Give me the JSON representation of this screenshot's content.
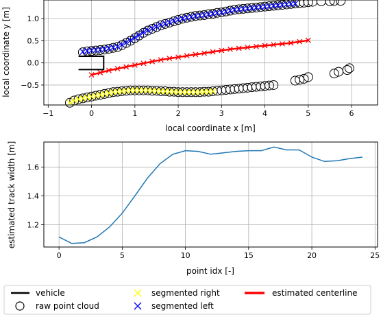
{
  "colors": {
    "raw": "#000000",
    "left": "#0000ff",
    "right": "#ffff00",
    "centerline": "#ff0000",
    "vehicle": "#000000",
    "width_line": "#1f77b4",
    "grid": "#b0b0b0"
  },
  "legend": {
    "placement": "bottom",
    "items": [
      {
        "label": "vehicle",
        "marker": "line-black"
      },
      {
        "label": "raw point cloud",
        "marker": "circle"
      },
      {
        "label": "segmented right",
        "marker": "x-yellow"
      },
      {
        "label": "segmented left",
        "marker": "x-blue"
      },
      {
        "label": "estimated centerline",
        "marker": "line-red"
      }
    ]
  },
  "chart_data": [
    {
      "type": "scatter",
      "xlabel": "local coordinate x [m]",
      "ylabel": "local coordinate y [m]",
      "xlim": [
        -1.1,
        6.6
      ],
      "ylim": [
        -0.95,
        1.42
      ],
      "xticks": [
        -1,
        0,
        1,
        2,
        3,
        4,
        5,
        6
      ],
      "xtick_labels": [
        "−1",
        "0",
        "1",
        "2",
        "3",
        "4",
        "5",
        "6"
      ],
      "yticks": [
        -0.5,
        0.0,
        0.5,
        1.0
      ],
      "ytick_labels": [
        "−0.5",
        "0.0",
        "0.5",
        "1.0"
      ],
      "grid": true,
      "vehicle": [
        [
          -0.3,
          -0.15
        ],
        [
          0.28,
          -0.15
        ],
        [
          0.28,
          0.15
        ],
        [
          -0.3,
          0.15
        ]
      ],
      "raw_point_cloud": [
        [
          -0.2,
          0.24
        ],
        [
          -0.1,
          0.26
        ],
        [
          0.0,
          0.27
        ],
        [
          0.1,
          0.28
        ],
        [
          0.2,
          0.29
        ],
        [
          0.3,
          0.3
        ],
        [
          0.4,
          0.32
        ],
        [
          0.5,
          0.34
        ],
        [
          0.6,
          0.36
        ],
        [
          0.7,
          0.4
        ],
        [
          0.8,
          0.45
        ],
        [
          0.9,
          0.5
        ],
        [
          1.0,
          0.56
        ],
        [
          1.1,
          0.62
        ],
        [
          1.2,
          0.68
        ],
        [
          1.3,
          0.73
        ],
        [
          1.4,
          0.77
        ],
        [
          1.5,
          0.81
        ],
        [
          1.6,
          0.85
        ],
        [
          1.7,
          0.88
        ],
        [
          1.8,
          0.91
        ],
        [
          1.9,
          0.94
        ],
        [
          2.0,
          0.97
        ],
        [
          2.1,
          1.0
        ],
        [
          2.2,
          1.02
        ],
        [
          2.3,
          1.04
        ],
        [
          2.4,
          1.06
        ],
        [
          2.5,
          1.07
        ],
        [
          2.6,
          1.08
        ],
        [
          2.7,
          1.1
        ],
        [
          2.8,
          1.11
        ],
        [
          2.9,
          1.13
        ],
        [
          3.0,
          1.14
        ],
        [
          3.1,
          1.16
        ],
        [
          3.2,
          1.18
        ],
        [
          3.3,
          1.2
        ],
        [
          3.4,
          1.21
        ],
        [
          3.5,
          1.22
        ],
        [
          3.6,
          1.23
        ],
        [
          3.7,
          1.24
        ],
        [
          3.8,
          1.25
        ],
        [
          3.9,
          1.26
        ],
        [
          4.0,
          1.27
        ],
        [
          4.1,
          1.28
        ],
        [
          4.2,
          1.29
        ],
        [
          4.3,
          1.3
        ],
        [
          4.4,
          1.31
        ],
        [
          4.5,
          1.32
        ],
        [
          4.6,
          1.33
        ],
        [
          4.7,
          1.34
        ],
        [
          4.8,
          1.35
        ],
        [
          4.9,
          1.36
        ],
        [
          5.0,
          1.37
        ],
        [
          5.1,
          1.38
        ],
        [
          5.3,
          1.39
        ],
        [
          5.5,
          1.39
        ],
        [
          5.6,
          1.4
        ],
        [
          5.75,
          1.4
        ],
        [
          -0.5,
          -0.9
        ],
        [
          -0.4,
          -0.85
        ],
        [
          -0.3,
          -0.82
        ],
        [
          -0.2,
          -0.8
        ],
        [
          -0.1,
          -0.78
        ],
        [
          0.0,
          -0.76
        ],
        [
          0.1,
          -0.74
        ],
        [
          0.2,
          -0.72
        ],
        [
          0.3,
          -0.7
        ],
        [
          0.4,
          -0.68
        ],
        [
          0.5,
          -0.66
        ],
        [
          0.6,
          -0.65
        ],
        [
          0.7,
          -0.64
        ],
        [
          0.8,
          -0.63
        ],
        [
          0.9,
          -0.62
        ],
        [
          1.0,
          -0.62
        ],
        [
          1.1,
          -0.62
        ],
        [
          1.2,
          -0.62
        ],
        [
          1.3,
          -0.62
        ],
        [
          1.4,
          -0.63
        ],
        [
          1.5,
          -0.63
        ],
        [
          1.6,
          -0.64
        ],
        [
          1.7,
          -0.64
        ],
        [
          1.8,
          -0.65
        ],
        [
          1.9,
          -0.65
        ],
        [
          2.0,
          -0.66
        ],
        [
          2.1,
          -0.66
        ],
        [
          2.2,
          -0.66
        ],
        [
          2.3,
          -0.66
        ],
        [
          2.4,
          -0.66
        ],
        [
          2.5,
          -0.66
        ],
        [
          2.6,
          -0.65
        ],
        [
          2.7,
          -0.65
        ],
        [
          2.8,
          -0.64
        ],
        [
          2.9,
          -0.63
        ],
        [
          3.0,
          -0.62
        ],
        [
          3.1,
          -0.61
        ],
        [
          3.2,
          -0.6
        ],
        [
          3.3,
          -0.59
        ],
        [
          3.4,
          -0.58
        ],
        [
          3.5,
          -0.57
        ],
        [
          3.6,
          -0.56
        ],
        [
          3.7,
          -0.55
        ],
        [
          3.8,
          -0.54
        ],
        [
          3.9,
          -0.53
        ],
        [
          4.0,
          -0.52
        ],
        [
          4.1,
          -0.51
        ],
        [
          4.2,
          -0.5
        ],
        [
          4.7,
          -0.4
        ],
        [
          4.8,
          -0.38
        ],
        [
          4.9,
          -0.36
        ],
        [
          5.0,
          -0.32
        ],
        [
          5.6,
          -0.24
        ],
        [
          5.7,
          -0.2
        ],
        [
          5.9,
          -0.16
        ],
        [
          5.95,
          -0.12
        ]
      ],
      "segmented_left": [
        [
          -0.2,
          0.25
        ],
        [
          -0.1,
          0.27
        ],
        [
          0.0,
          0.28
        ],
        [
          0.1,
          0.29
        ],
        [
          0.2,
          0.3
        ],
        [
          0.3,
          0.31
        ],
        [
          0.4,
          0.33
        ],
        [
          0.5,
          0.35
        ],
        [
          0.6,
          0.37
        ],
        [
          0.7,
          0.41
        ],
        [
          0.8,
          0.46
        ],
        [
          0.9,
          0.51
        ],
        [
          1.0,
          0.57
        ],
        [
          1.1,
          0.63
        ],
        [
          1.2,
          0.69
        ],
        [
          1.3,
          0.74
        ],
        [
          1.4,
          0.78
        ],
        [
          1.5,
          0.82
        ],
        [
          1.6,
          0.86
        ],
        [
          1.7,
          0.89
        ],
        [
          1.8,
          0.92
        ],
        [
          1.9,
          0.95
        ],
        [
          2.0,
          0.98
        ],
        [
          2.1,
          1.0
        ],
        [
          2.2,
          1.02
        ],
        [
          2.3,
          1.04
        ],
        [
          2.4,
          1.06
        ],
        [
          2.5,
          1.07
        ],
        [
          2.6,
          1.08
        ],
        [
          2.7,
          1.1
        ],
        [
          2.8,
          1.11
        ],
        [
          2.9,
          1.13
        ],
        [
          3.0,
          1.14
        ],
        [
          3.1,
          1.16
        ],
        [
          3.2,
          1.18
        ],
        [
          3.3,
          1.2
        ],
        [
          3.4,
          1.21
        ],
        [
          3.5,
          1.22
        ],
        [
          3.6,
          1.23
        ],
        [
          3.7,
          1.24
        ],
        [
          3.8,
          1.25
        ],
        [
          3.9,
          1.26
        ],
        [
          4.0,
          1.27
        ],
        [
          4.1,
          1.28
        ],
        [
          4.2,
          1.29
        ],
        [
          4.3,
          1.3
        ],
        [
          4.4,
          1.31
        ],
        [
          4.5,
          1.32
        ],
        [
          4.6,
          1.33
        ],
        [
          4.7,
          1.34
        ]
      ],
      "segmented_right": [
        [
          -0.5,
          -0.9
        ],
        [
          -0.4,
          -0.85
        ],
        [
          -0.3,
          -0.82
        ],
        [
          -0.2,
          -0.8
        ],
        [
          -0.1,
          -0.78
        ],
        [
          0.0,
          -0.76
        ],
        [
          0.1,
          -0.74
        ],
        [
          0.2,
          -0.72
        ],
        [
          0.3,
          -0.7
        ],
        [
          0.4,
          -0.68
        ],
        [
          0.5,
          -0.66
        ],
        [
          0.6,
          -0.65
        ],
        [
          0.7,
          -0.64
        ],
        [
          0.8,
          -0.63
        ],
        [
          0.9,
          -0.62
        ],
        [
          1.0,
          -0.62
        ],
        [
          1.1,
          -0.62
        ],
        [
          1.2,
          -0.62
        ],
        [
          1.3,
          -0.62
        ],
        [
          1.4,
          -0.63
        ],
        [
          1.5,
          -0.63
        ],
        [
          1.6,
          -0.64
        ],
        [
          1.7,
          -0.64
        ],
        [
          1.8,
          -0.65
        ],
        [
          1.9,
          -0.65
        ],
        [
          2.0,
          -0.66
        ],
        [
          2.1,
          -0.66
        ],
        [
          2.2,
          -0.66
        ],
        [
          2.3,
          -0.66
        ],
        [
          2.4,
          -0.66
        ],
        [
          2.5,
          -0.66
        ],
        [
          2.6,
          -0.65
        ],
        [
          2.7,
          -0.65
        ],
        [
          2.8,
          -0.64
        ]
      ],
      "estimated_centerline": [
        [
          0.0,
          -0.27
        ],
        [
          0.2,
          -0.22
        ],
        [
          0.4,
          -0.17
        ],
        [
          0.6,
          -0.13
        ],
        [
          0.8,
          -0.09
        ],
        [
          1.0,
          -0.05
        ],
        [
          1.2,
          -0.01
        ],
        [
          1.4,
          0.03
        ],
        [
          1.6,
          0.07
        ],
        [
          1.8,
          0.1
        ],
        [
          2.0,
          0.13
        ],
        [
          2.2,
          0.16
        ],
        [
          2.4,
          0.19
        ],
        [
          2.6,
          0.22
        ],
        [
          2.8,
          0.25
        ],
        [
          3.0,
          0.28
        ],
        [
          3.2,
          0.31
        ],
        [
          3.4,
          0.33
        ],
        [
          3.6,
          0.35
        ],
        [
          3.8,
          0.37
        ],
        [
          4.0,
          0.39
        ],
        [
          4.2,
          0.41
        ],
        [
          4.4,
          0.43
        ],
        [
          4.6,
          0.45
        ],
        [
          4.8,
          0.48
        ],
        [
          5.0,
          0.51
        ]
      ]
    },
    {
      "type": "line",
      "xlabel": "point idx [-]",
      "ylabel": "estimated track width [m]",
      "xlim": [
        -1.2,
        25.2
      ],
      "ylim": [
        1.045,
        1.775
      ],
      "xticks": [
        0,
        5,
        10,
        15,
        20,
        25
      ],
      "xtick_labels": [
        "0",
        "5",
        "10",
        "15",
        "20",
        "25"
      ],
      "yticks": [
        1.2,
        1.4,
        1.6
      ],
      "ytick_labels": [
        "1.2",
        "1.4",
        "1.6"
      ],
      "grid": true,
      "x": [
        0,
        1,
        2,
        3,
        4,
        5,
        6,
        7,
        8,
        9,
        10,
        11,
        12,
        13,
        14,
        15,
        16,
        17,
        18,
        19,
        20,
        21,
        22,
        23,
        24
      ],
      "y": [
        1.115,
        1.07,
        1.075,
        1.115,
        1.185,
        1.28,
        1.4,
        1.525,
        1.625,
        1.69,
        1.715,
        1.71,
        1.69,
        1.7,
        1.71,
        1.715,
        1.715,
        1.74,
        1.72,
        1.72,
        1.67,
        1.64,
        1.645,
        1.66,
        1.67
      ]
    }
  ]
}
